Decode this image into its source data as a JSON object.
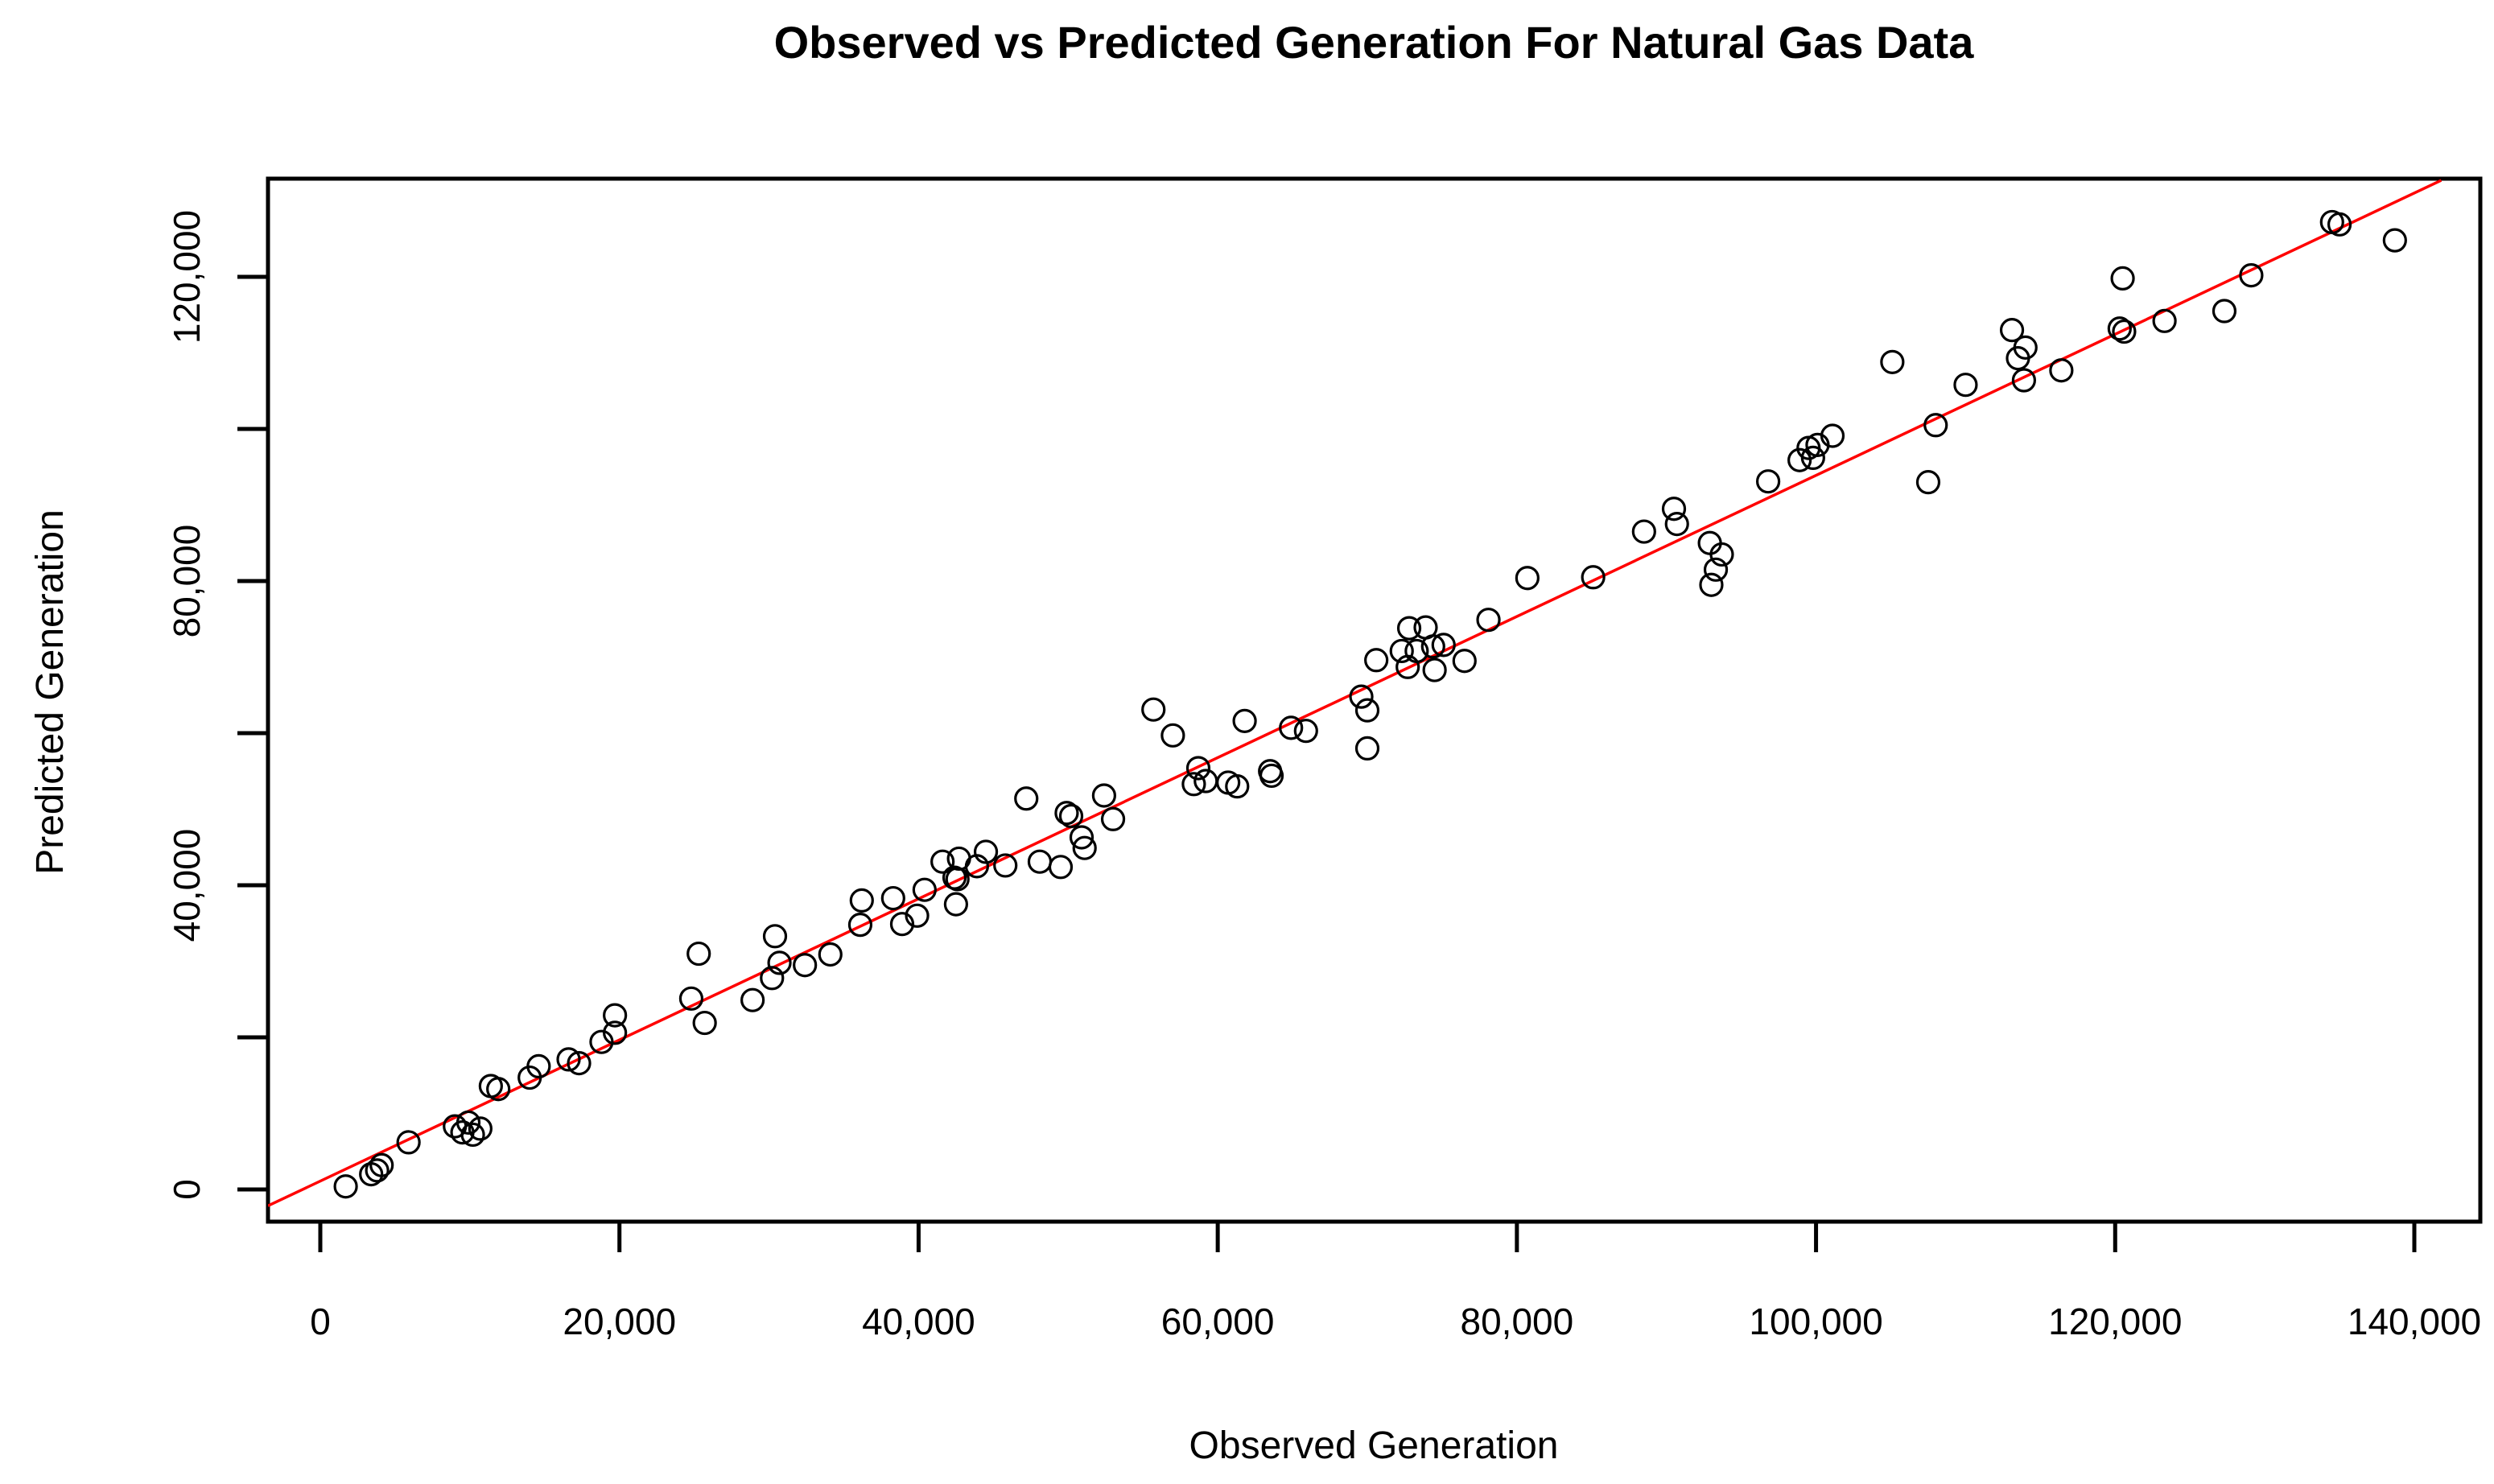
{
  "page": {
    "background": "#ffffff"
  },
  "chart_data": {
    "type": "scatter",
    "title": "Observed vs Predicted Generation For Natural Gas Data",
    "xlabel": "Observed Generation",
    "ylabel": "Predicted Generation",
    "xlim": [
      -3500,
      144000
    ],
    "ylim": [
      -4200,
      133000
    ],
    "grid": false,
    "legend": "none",
    "marker": {
      "shape": "open-circle",
      "color": "#000000"
    },
    "fit_line": {
      "color": "#ff0000",
      "intercept": 1100,
      "slope": 0.928,
      "x_start": -3500,
      "x_end": 141800
    },
    "x_ticks": [
      {
        "v": 0,
        "label": "0"
      },
      {
        "v": 20000,
        "label": "20,000"
      },
      {
        "v": 40000,
        "label": "40,000"
      },
      {
        "v": 60000,
        "label": "60,000"
      },
      {
        "v": 80000,
        "label": "80,000"
      },
      {
        "v": 100000,
        "label": "100,000"
      },
      {
        "v": 120000,
        "label": "120,000"
      },
      {
        "v": 140000,
        "label": "140,000"
      }
    ],
    "y_ticks": [
      {
        "v": 0,
        "label": "0"
      },
      {
        "v": 20000,
        "label": ""
      },
      {
        "v": 40000,
        "label": "40,000"
      },
      {
        "v": 60000,
        "label": ""
      },
      {
        "v": 80000,
        "label": "80,000"
      },
      {
        "v": 100000,
        "label": ""
      },
      {
        "v": 120000,
        "label": "120,000"
      }
    ],
    "points": [
      [
        1700,
        400
      ],
      [
        3400,
        2000
      ],
      [
        3800,
        2500
      ],
      [
        4100,
        3200
      ],
      [
        5900,
        6200
      ],
      [
        9000,
        8300
      ],
      [
        9500,
        7500
      ],
      [
        9900,
        8800
      ],
      [
        10200,
        7200
      ],
      [
        10700,
        8000
      ],
      [
        11400,
        13600
      ],
      [
        11900,
        13200
      ],
      [
        14000,
        14700
      ],
      [
        14600,
        16200
      ],
      [
        16600,
        17100
      ],
      [
        17300,
        16600
      ],
      [
        18800,
        19400
      ],
      [
        19700,
        22900
      ],
      [
        19700,
        20600
      ],
      [
        24800,
        25100
      ],
      [
        25300,
        31000
      ],
      [
        25700,
        21900
      ],
      [
        28900,
        24900
      ],
      [
        30200,
        27800
      ],
      [
        30400,
        33300
      ],
      [
        30700,
        29800
      ],
      [
        32400,
        29500
      ],
      [
        34100,
        30900
      ],
      [
        36100,
        34800
      ],
      [
        36200,
        38000
      ],
      [
        38300,
        38300
      ],
      [
        38900,
        34900
      ],
      [
        39900,
        36000
      ],
      [
        40400,
        39400
      ],
      [
        41600,
        43100
      ],
      [
        42400,
        41000
      ],
      [
        42600,
        40800
      ],
      [
        42500,
        37500
      ],
      [
        42700,
        43500
      ],
      [
        43900,
        42500
      ],
      [
        44500,
        44400
      ],
      [
        45800,
        42600
      ],
      [
        47200,
        51400
      ],
      [
        48100,
        43100
      ],
      [
        49500,
        42400
      ],
      [
        49900,
        49500
      ],
      [
        50200,
        49100
      ],
      [
        50900,
        46300
      ],
      [
        51100,
        44900
      ],
      [
        52400,
        51800
      ],
      [
        53000,
        48700
      ],
      [
        55700,
        63100
      ],
      [
        57000,
        59700
      ],
      [
        58400,
        53300
      ],
      [
        58700,
        55400
      ],
      [
        59200,
        53700
      ],
      [
        60700,
        53500
      ],
      [
        61300,
        53000
      ],
      [
        61800,
        61600
      ],
      [
        63500,
        55000
      ],
      [
        63600,
        54400
      ],
      [
        64900,
        60700
      ],
      [
        65900,
        60300
      ],
      [
        69600,
        64800
      ],
      [
        70000,
        63000
      ],
      [
        70000,
        58000
      ],
      [
        70600,
        69600
      ],
      [
        72300,
        70800
      ],
      [
        72700,
        68700
      ],
      [
        72800,
        73800
      ],
      [
        73300,
        70800
      ],
      [
        73900,
        73900
      ],
      [
        74400,
        71400
      ],
      [
        74500,
        68300
      ],
      [
        75100,
        71600
      ],
      [
        76500,
        69500
      ],
      [
        78100,
        74900
      ],
      [
        80700,
        80400
      ],
      [
        85100,
        80500
      ],
      [
        88500,
        86500
      ],
      [
        90500,
        89500
      ],
      [
        90700,
        87500
      ],
      [
        92900,
        85000
      ],
      [
        93700,
        83500
      ],
      [
        93300,
        81500
      ],
      [
        93000,
        79500
      ],
      [
        96800,
        93100
      ],
      [
        98900,
        95900
      ],
      [
        99500,
        97500
      ],
      [
        99800,
        96200
      ],
      [
        100100,
        97900
      ],
      [
        101100,
        99100
      ],
      [
        105100,
        108800
      ],
      [
        110000,
        105800
      ],
      [
        108000,
        100500
      ],
      [
        107500,
        93000
      ],
      [
        113100,
        113000
      ],
      [
        114000,
        110700
      ],
      [
        113500,
        109300
      ],
      [
        113900,
        106400
      ],
      [
        116400,
        107700
      ],
      [
        120500,
        119800
      ],
      [
        120300,
        113200
      ],
      [
        120600,
        112800
      ],
      [
        123300,
        114200
      ],
      [
        127300,
        115500
      ],
      [
        129100,
        120200
      ],
      [
        134500,
        127200
      ],
      [
        135000,
        126900
      ],
      [
        138700,
        124800
      ]
    ]
  }
}
